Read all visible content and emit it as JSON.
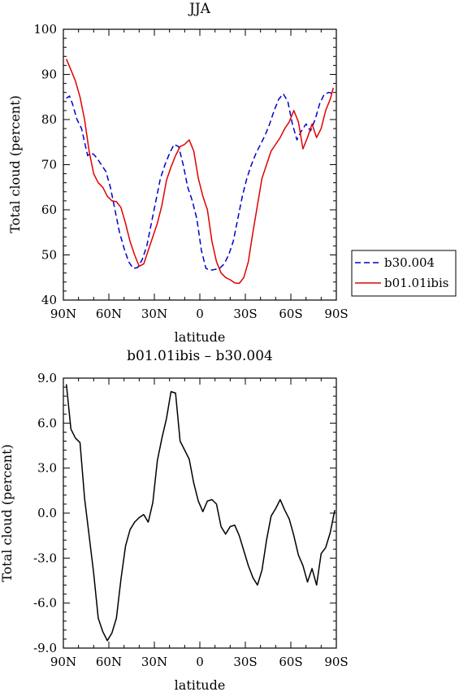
{
  "chart_data": [
    {
      "type": "line",
      "title": "JJA",
      "xlabel": "latitude",
      "ylabel": "Total cloud (percent)",
      "xlim": [
        90,
        -90
      ],
      "ylim": [
        40,
        100
      ],
      "x_tick_values": [
        90,
        60,
        30,
        0,
        -30,
        -60,
        -90
      ],
      "x_tick_labels": [
        "90N",
        "60N",
        "30N",
        "0",
        "30S",
        "60S",
        "90S"
      ],
      "y_tick_values": [
        40,
        50,
        60,
        70,
        80,
        90,
        100
      ],
      "y_tick_labels": [
        "40",
        "50",
        "60",
        "70",
        "80",
        "90",
        "100"
      ],
      "legend_position": "outside-right",
      "series": [
        {
          "name": "b30.004",
          "color": "#0000cc",
          "dash": "dashed",
          "x": [
            88,
            86,
            84,
            81,
            78,
            76,
            74,
            72,
            70,
            68,
            65,
            62,
            59,
            56,
            53,
            50,
            47,
            44,
            41,
            38,
            35,
            32,
            29,
            26,
            23,
            20,
            17,
            14,
            11,
            8,
            5,
            2,
            -1,
            -4,
            -7,
            -10,
            -13,
            -16,
            -19,
            -22,
            -25,
            -28,
            -31,
            -34,
            -37,
            -40,
            -43,
            -46,
            -49,
            -52,
            -55,
            -58,
            -61,
            -64,
            -67,
            -70,
            -73,
            -76,
            -79,
            -82,
            -85,
            -88
          ],
          "y": [
            84.7,
            85.2,
            83.5,
            80,
            78,
            75,
            72,
            72.5,
            72.3,
            71.5,
            70,
            68.5,
            65,
            60,
            55,
            51.5,
            48.5,
            47,
            47.2,
            49,
            52,
            57,
            62,
            67,
            70,
            72.5,
            74.5,
            74,
            70,
            65,
            62,
            58,
            51,
            47,
            46.6,
            46.8,
            47,
            48,
            50,
            53,
            58,
            63,
            67,
            70,
            72.5,
            74.5,
            76.5,
            79,
            82,
            84.5,
            85.7,
            84,
            79,
            75.5,
            77.5,
            79,
            77.5,
            80,
            83.5,
            85.6,
            86,
            85.8
          ]
        },
        {
          "name": "b01.01ibis",
          "color": "#e00000",
          "dash": "solid",
          "x": [
            88,
            85,
            82,
            79,
            76,
            73,
            70,
            67,
            64,
            61,
            58,
            55,
            52,
            49,
            46,
            43,
            40,
            37,
            34,
            31,
            28,
            25,
            22,
            19,
            16,
            13,
            10,
            7,
            4,
            1,
            -2,
            -5,
            -8,
            -11,
            -14,
            -17,
            -20,
            -23,
            -26,
            -29,
            -32,
            -35,
            -38,
            -41,
            -44,
            -47,
            -50,
            -53,
            -56,
            -59,
            -62,
            -65,
            -68,
            -71,
            -74,
            -77,
            -80,
            -83,
            -86,
            -88
          ],
          "y": [
            93.4,
            91,
            88.5,
            85,
            80,
            73,
            68,
            66,
            65,
            63,
            62,
            61.8,
            60.5,
            57,
            53,
            50,
            47.5,
            48,
            51,
            54,
            57,
            61,
            66.5,
            69.5,
            72,
            74,
            74.5,
            75.5,
            73,
            67,
            63,
            60,
            53,
            48.5,
            46,
            45,
            44.5,
            43.8,
            43.7,
            45,
            48.5,
            55,
            61,
            67,
            70,
            73,
            74.5,
            76,
            78,
            79.5,
            82,
            79.5,
            73.5,
            76,
            79,
            76,
            78,
            82,
            84.5,
            87
          ]
        }
      ]
    },
    {
      "type": "line",
      "title": "b01.01ibis – b30.004",
      "xlabel": "latitude",
      "ylabel": "Total cloud (percent)",
      "xlim": [
        90,
        -90
      ],
      "ylim": [
        -9,
        9
      ],
      "x_tick_values": [
        90,
        60,
        30,
        0,
        -30,
        -60,
        -90
      ],
      "x_tick_labels": [
        "90N",
        "60N",
        "30N",
        "0",
        "30S",
        "60S",
        "90S"
      ],
      "y_tick_values": [
        -9,
        -6,
        -3,
        0,
        3,
        6,
        9
      ],
      "y_tick_labels": [
        "-9.0",
        "-6.0",
        "-3.0",
        "0.0",
        "3.0",
        "6.0",
        "9.0"
      ],
      "series": [
        {
          "color": "#000000",
          "dash": "solid",
          "x": [
            88,
            85,
            82,
            79,
            76,
            73,
            70,
            67,
            64,
            61,
            58,
            55,
            52,
            49,
            46,
            43,
            40,
            37,
            34,
            31,
            28,
            25,
            22,
            19,
            16,
            13,
            10,
            7,
            4,
            1,
            -2,
            -5,
            -8,
            -11,
            -14,
            -17,
            -20,
            -23,
            -26,
            -29,
            -32,
            -35,
            -38,
            -41,
            -44,
            -47,
            -50,
            -53,
            -56,
            -59,
            -62,
            -65,
            -68,
            -71,
            -74,
            -77,
            -80,
            -83,
            -86,
            -89
          ],
          "y": [
            8.6,
            5.6,
            5,
            4.7,
            1,
            -1.5,
            -4,
            -7,
            -7.9,
            -8.5,
            -8,
            -7,
            -4.4,
            -2.2,
            -1.1,
            -0.6,
            -0.3,
            -0.1,
            -0.6,
            0.7,
            3.5,
            5,
            6.3,
            8.1,
            8,
            4.8,
            4.2,
            3.6,
            2,
            0.8,
            0.1,
            0.8,
            0.9,
            0.6,
            -0.9,
            -1.4,
            -0.9,
            -0.8,
            -1.5,
            -2.5,
            -3.5,
            -4.3,
            -4.8,
            -3.8,
            -1.8,
            -0.2,
            0.3,
            0.9,
            0.2,
            -0.4,
            -1.5,
            -2.8,
            -3.5,
            -4.6,
            -3.7,
            -4.8,
            -2.7,
            -2.3,
            -1.3,
            0.2
          ]
        }
      ]
    }
  ]
}
